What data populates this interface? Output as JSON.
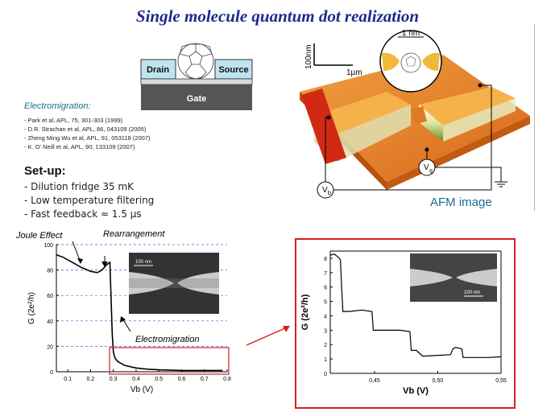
{
  "title": "Single molecule quantum dot realization",
  "device": {
    "drain": "Drain",
    "source": "Source",
    "gate": "Gate"
  },
  "electromigration": {
    "heading": "Electromigration:",
    "refs": [
      "- Park et al, APL, 75, 301-303 (1999)",
      "- D.R. Strachan et al, APL, 86, 043109 (2005)",
      "- Zheng Ming Wu et al, APL, 91, 053118 (2007)",
      "- K. O' Neill et al, APL, 90, 133109 (2007)"
    ]
  },
  "setup": {
    "heading": "Set-up:",
    "items": [
      "- Dilution fridge 35 mK",
      "- Low temperature filtering",
      "- Fast feedback ≈ 1.5 µs"
    ]
  },
  "afm": {
    "caption": "AFM image",
    "scale_z": "100nm",
    "scale_x": "1µm",
    "inset_scale": "1 nm",
    "vb_label": "V",
    "vb_sub": "b",
    "vg_label": "V",
    "vg_sub": "g"
  },
  "left_chart_labels": {
    "joule": "Joule Effect",
    "rearrangement": "Rearrangement",
    "electromigration": "Electromigration",
    "sem_scale": "100 nm"
  },
  "right_chart_labels": {
    "sem_scale": "100 nm"
  },
  "colors": {
    "title": "#1d2a8c",
    "frame": "#d42020",
    "grid": "#5555dd",
    "afm_orange": "#e07a1f"
  },
  "chart_data": [
    {
      "type": "line",
      "title": "",
      "xlabel": "Vb (V)",
      "ylabel": "G (2e²/h)",
      "xlim": [
        0.05,
        0.8
      ],
      "ylim": [
        0,
        100
      ],
      "xticks": [
        0.1,
        0.2,
        0.3,
        0.4,
        0.5,
        0.6,
        0.7,
        0.8
      ],
      "yticks": [
        0,
        20,
        40,
        60,
        80,
        100
      ],
      "grid": "horizontal dashed",
      "series": [
        {
          "x": [
            0.05,
            0.08,
            0.12,
            0.16,
            0.2,
            0.23,
            0.25,
            0.27,
            0.285,
            0.29,
            0.295,
            0.3,
            0.305,
            0.31,
            0.32,
            0.35,
            0.4,
            0.45,
            0.5,
            0.6,
            0.7,
            0.78
          ],
          "y": [
            92,
            90,
            86,
            82,
            79,
            78,
            80,
            84,
            86,
            60,
            30,
            16,
            12,
            10,
            8,
            5,
            3,
            2,
            1.5,
            1,
            1,
            1
          ]
        }
      ]
    },
    {
      "type": "line",
      "title": "",
      "xlabel": "Vb (V)",
      "ylabel": "G (2e²/h)",
      "xlim": [
        0.415,
        0.55
      ],
      "ylim": [
        0,
        8.5
      ],
      "xticks": [
        0.45,
        0.5,
        0.55
      ],
      "xtick_labels": [
        "0,45",
        "0,50",
        "0,55"
      ],
      "yticks": [
        0,
        1,
        2,
        3,
        4,
        5,
        6,
        7,
        8
      ],
      "series": [
        {
          "x": [
            0.415,
            0.418,
            0.421,
            0.423,
            0.424,
            0.425,
            0.43,
            0.44,
            0.448,
            0.449,
            0.455,
            0.46,
            0.47,
            0.478,
            0.479,
            0.483,
            0.488,
            0.49,
            0.5,
            0.51,
            0.512,
            0.514,
            0.519,
            0.52,
            0.53,
            0.54,
            0.55
          ],
          "y": [
            8.2,
            8.3,
            8.1,
            7.9,
            6,
            4.3,
            4.3,
            4.4,
            4.3,
            3.0,
            3.0,
            3.0,
            3.0,
            2.9,
            1.6,
            1.6,
            1.2,
            1.2,
            1.25,
            1.3,
            1.7,
            1.8,
            1.7,
            1.1,
            1.1,
            1.1,
            1.15
          ]
        }
      ]
    }
  ]
}
